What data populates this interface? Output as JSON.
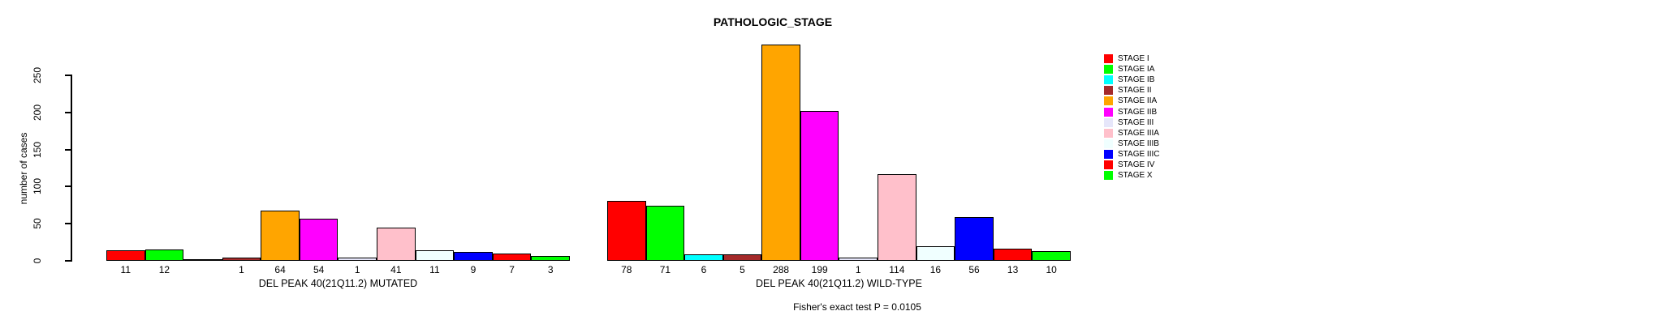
{
  "header": {
    "title": "PATHOLOGIC_STAGE"
  },
  "footer": {
    "annotation": "Fisher's exact test P = 0.0105"
  },
  "chart_data": {
    "type": "bar",
    "title": "PATHOLOGIC_STAGE",
    "ylabel": "number of cases",
    "yticks": [
      0,
      50,
      100,
      150,
      200,
      250
    ],
    "ylim": [
      0,
      288
    ],
    "grid": false,
    "legend_position": "right",
    "categories": [
      "STAGE I",
      "STAGE IA",
      "STAGE IB",
      "STAGE II",
      "STAGE IIA",
      "STAGE IIB",
      "STAGE III",
      "STAGE IIIA",
      "STAGE IIIB",
      "STAGE IIIC",
      "STAGE IV",
      "STAGE X"
    ],
    "palette": [
      "#FF0000",
      "#00FF00",
      "#00FFFF",
      "#A52A2A",
      "#FFA500",
      "#FF00FF",
      "#E6E6FA",
      "#FFC0CB",
      "#F0FFFF",
      "#0000FF",
      "#FF0000",
      "#00FF00"
    ],
    "series": [
      {
        "name": "DEL PEAK 40(21Q11.2) MUTATED",
        "values": [
          11,
          12,
          0,
          1,
          64,
          54,
          1,
          41,
          11,
          9,
          7,
          3
        ]
      },
      {
        "name": "DEL PEAK 40(21Q11.2) WILD-TYPE",
        "values": [
          78,
          71,
          6,
          5,
          288,
          199,
          1,
          114,
          16,
          56,
          13,
          10
        ]
      }
    ],
    "annotation": "Fisher's exact test P = 0.0105"
  }
}
